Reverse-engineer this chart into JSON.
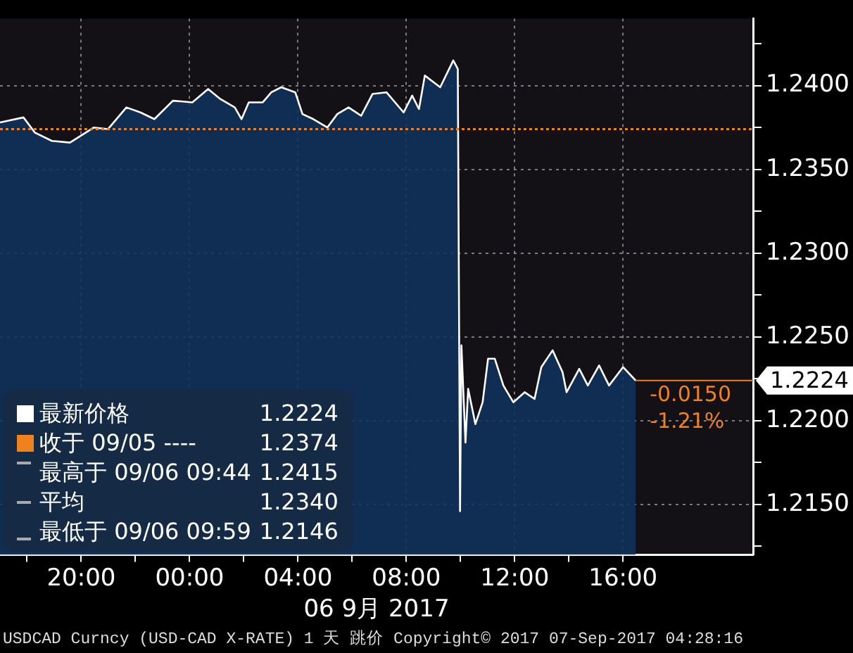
{
  "chart_data": {
    "type": "area",
    "xlabel": "06 9月 2017",
    "x": [
      "2017-09-05T17:00",
      "2017-09-05T17:52",
      "2017-09-05T18:17",
      "2017-09-05T18:55",
      "2017-09-05T19:35",
      "2017-09-05T20:28",
      "2017-09-05T20:59",
      "2017-09-05T21:40",
      "2017-09-05T22:11",
      "2017-09-05T22:42",
      "2017-09-05T23:23",
      "2017-09-06T00:06",
      "2017-09-06T00:41",
      "2017-09-06T01:08",
      "2017-09-06T01:40",
      "2017-09-06T01:55",
      "2017-09-06T02:11",
      "2017-09-06T02:42",
      "2017-09-06T03:01",
      "2017-09-06T03:23",
      "2017-09-06T03:54",
      "2017-09-06T04:10",
      "2017-09-06T04:34",
      "2017-09-06T05:05",
      "2017-09-06T05:27",
      "2017-09-06T05:52",
      "2017-09-06T06:20",
      "2017-09-06T06:45",
      "2017-09-06T07:16",
      "2017-09-06T07:54",
      "2017-09-06T08:13",
      "2017-09-06T08:28",
      "2017-09-06T08:41",
      "2017-09-06T09:15",
      "2017-09-06T09:44",
      "2017-09-06T09:54",
      "2017-09-06T09:59",
      "2017-09-06T10:02",
      "2017-09-06T10:11",
      "2017-09-06T10:17",
      "2017-09-06T10:33",
      "2017-09-06T10:49",
      "2017-09-06T11:01",
      "2017-09-06T11:16",
      "2017-09-06T11:35",
      "2017-09-06T11:57",
      "2017-09-06T12:22",
      "2017-09-06T12:44",
      "2017-09-06T12:59",
      "2017-09-06T13:24",
      "2017-09-06T13:46",
      "2017-09-06T13:55",
      "2017-09-06T14:23",
      "2017-09-06T14:42",
      "2017-09-06T15:07",
      "2017-09-06T15:29",
      "2017-09-06T16:00",
      "2017-09-06T16:28"
    ],
    "series": [
      {
        "name": "最新价格",
        "color": "#ffffff",
        "values": [
          1.2378,
          1.2381,
          1.2372,
          1.2367,
          1.2366,
          1.2375,
          1.2374,
          1.2387,
          1.2384,
          1.238,
          1.2391,
          1.239,
          1.2398,
          1.2392,
          1.2387,
          1.238,
          1.239,
          1.239,
          1.2396,
          1.2399,
          1.2396,
          1.2383,
          1.238,
          1.2375,
          1.2383,
          1.2387,
          1.2382,
          1.2395,
          1.2396,
          1.2384,
          1.2394,
          1.2386,
          1.2406,
          1.2399,
          1.2415,
          1.241,
          1.2146,
          1.2245,
          1.2187,
          1.2219,
          1.2198,
          1.2211,
          1.2237,
          1.2237,
          1.2221,
          1.2211,
          1.2217,
          1.2213,
          1.2232,
          1.2242,
          1.2229,
          1.2217,
          1.2231,
          1.2221,
          1.2233,
          1.2221,
          1.2232,
          1.2224
        ]
      }
    ],
    "xlim": [
      "2017-09-05T17:00",
      "2017-09-06T20:48"
    ],
    "xticks": [
      {
        "value": "2017-09-05T18:00",
        "label": null
      },
      {
        "value": "2017-09-05T20:00",
        "label": "20:00"
      },
      {
        "value": "2017-09-05T22:00",
        "label": null
      },
      {
        "value": "2017-09-06T00:00",
        "label": "00:00"
      },
      {
        "value": "2017-09-06T02:00",
        "label": null
      },
      {
        "value": "2017-09-06T04:00",
        "label": "04:00"
      },
      {
        "value": "2017-09-06T06:00",
        "label": null
      },
      {
        "value": "2017-09-06T08:00",
        "label": "08:00"
      },
      {
        "value": "2017-09-06T10:00",
        "label": null
      },
      {
        "value": "2017-09-06T12:00",
        "label": "12:00"
      },
      {
        "value": "2017-09-06T14:00",
        "label": null
      },
      {
        "value": "2017-09-06T16:00",
        "label": "16:00"
      }
    ],
    "ylim": [
      1.212,
      1.244
    ],
    "yticks": [
      {
        "value": 1.2125,
        "label": null
      },
      {
        "value": 1.215,
        "label": "1.2150"
      },
      {
        "value": 1.2175,
        "label": null
      },
      {
        "value": 1.22,
        "label": "1.2200"
      },
      {
        "value": 1.2225,
        "label": null
      },
      {
        "value": 1.225,
        "label": "1.2250"
      },
      {
        "value": 1.2275,
        "label": null
      },
      {
        "value": 1.23,
        "label": "1.2300"
      },
      {
        "value": 1.2325,
        "label": null
      },
      {
        "value": 1.235,
        "label": "1.2350"
      },
      {
        "value": 1.2375,
        "label": null
      },
      {
        "value": 1.24,
        "label": "1.2400"
      },
      {
        "value": 1.2425,
        "label": null
      }
    ],
    "grid": true,
    "legend": "bottom left",
    "ref_lines": [
      {
        "axis": "y",
        "value": 1.2374,
        "label": "收于 09/05 ----",
        "color": "#f0821e",
        "line_style": "dotted"
      }
    ],
    "annotations": [
      "1.2224",
      "1.2374",
      "最高于 09/06 09:44",
      "1.2415",
      "平均",
      "1.2340",
      "最低于 09/06 09:59",
      "1.2146",
      {
        "text": "1.2224",
        "x": "2017-09-06T16:28",
        "y": 1.2224
      },
      "-0.0150",
      "-1.21%",
      "USDCAD Curncy (USD-CAD X-RATE) 1 天 跳价 Copyright© 2017 07-Sep-2017 04:28:16"
    ]
  }
}
